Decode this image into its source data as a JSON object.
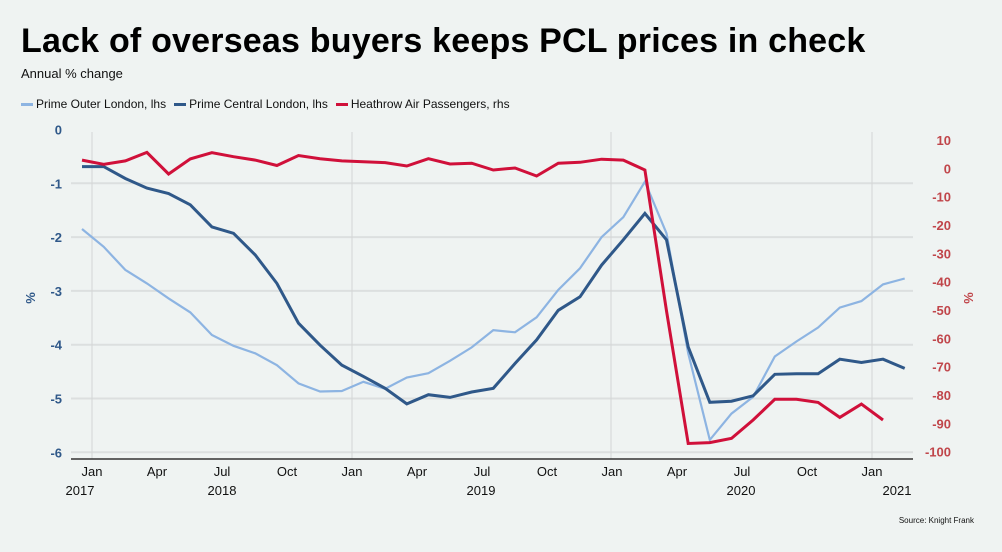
{
  "title": "Lack of overseas buyers keeps PCL prices in check",
  "subtitle": "Annual % change",
  "source": "Source: Knight Frank",
  "colors": {
    "prime_outer": "#8db4e2",
    "prime_central": "#2f5889",
    "heathrow": "#d0103a",
    "left_axis": "#2f5889",
    "right_axis": "#c0454a"
  },
  "chart_data": {
    "type": "line",
    "title": "Lack of overseas buyers keeps PCL prices in check",
    "subtitle": "Annual % change",
    "ylabel": "%",
    "y2label": "%",
    "ylim": [
      -6,
      0
    ],
    "y2lim": [
      -100,
      10
    ],
    "yticks": [
      "0",
      "-1",
      "-2",
      "-3",
      "-4",
      "-5",
      "-6"
    ],
    "y2ticks": [
      "10",
      "0",
      "-10",
      "-20",
      "-30",
      "-40",
      "-50",
      "-60",
      "-70",
      "-80",
      "-90",
      "-100"
    ],
    "xtick_labels": [
      "Jan",
      "Apr",
      "Jul",
      "Oct",
      "Jan",
      "Apr",
      "Jul",
      "Oct",
      "Jan",
      "Apr",
      "Jul",
      "Oct",
      "Jan"
    ],
    "xyear_labels": [
      "2017",
      "2018",
      "2019",
      "2020",
      "2021"
    ],
    "legend_position": "top-left",
    "grid": true,
    "series": [
      {
        "name": "Prime Outer London, lhs",
        "axis": "left",
        "color": "#8db4e2",
        "values": [
          -1.85,
          -2.18,
          -2.61,
          -2.86,
          -3.14,
          -3.4,
          -3.82,
          -4.02,
          -4.16,
          -4.38,
          -4.72,
          -4.87,
          -4.86,
          -4.69,
          -4.82,
          -4.61,
          -4.53,
          -4.3,
          -4.05,
          -3.73,
          -3.77,
          -3.49,
          -2.98,
          -2.58,
          -2.0,
          -1.63,
          -0.97,
          -1.93,
          -4.16,
          -5.77,
          -5.28,
          -4.97,
          -4.22,
          -3.94,
          -3.68,
          -3.31,
          -3.19,
          -2.88,
          -2.77
        ]
      },
      {
        "name": "Prime Central London, lhs",
        "axis": "left",
        "color": "#2f5889",
        "values": [
          -0.69,
          -0.69,
          -0.91,
          -1.09,
          -1.19,
          -1.4,
          -1.81,
          -1.93,
          -2.33,
          -2.86,
          -3.6,
          -4.01,
          -4.38,
          -4.59,
          -4.81,
          -5.1,
          -4.93,
          -4.98,
          -4.88,
          -4.81,
          -4.35,
          -3.91,
          -3.36,
          -3.11,
          -2.52,
          -2.05,
          -1.56,
          -2.05,
          -4.04,
          -5.07,
          -5.05,
          -4.95,
          -4.55,
          -4.54,
          -4.54,
          -4.27,
          -4.33,
          -4.27,
          -4.44
        ]
      },
      {
        "name": "Heathrow Air Passengers, rhs",
        "axis": "right",
        "color": "#d0103a",
        "values": [
          2.9,
          1.4,
          2.6,
          5.6,
          -2.0,
          3.3,
          5.5,
          4.1,
          2.9,
          1.0,
          4.5,
          3.4,
          2.6,
          2.3,
          2.0,
          0.8,
          3.4,
          1.5,
          1.8,
          -0.6,
          0.1,
          -2.7,
          1.8,
          2.1,
          3.2,
          2.9,
          -0.6,
          -50.3,
          -97.1,
          -96.8,
          -95.3,
          -88.8,
          -81.5,
          -81.5,
          -82.6,
          -87.9,
          -83.2,
          -88.8
        ]
      }
    ]
  }
}
